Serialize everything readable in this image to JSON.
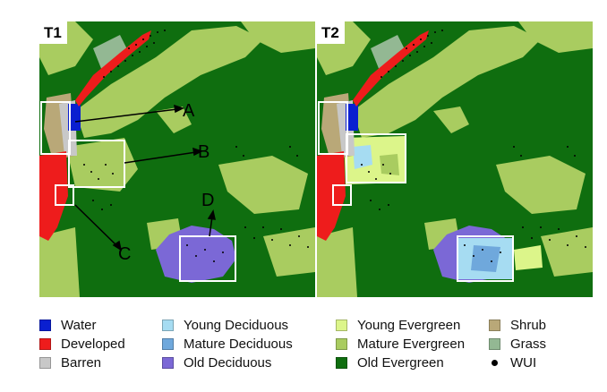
{
  "panels": [
    {
      "label": "T1"
    },
    {
      "label": "T2"
    }
  ],
  "callouts": [
    "A",
    "B",
    "C",
    "D"
  ],
  "legend": [
    {
      "label": "Water",
      "color": "#0a1fd0"
    },
    {
      "label": "Developed",
      "color": "#ee1c1c"
    },
    {
      "label": "Barren",
      "color": "#c8c8c8"
    },
    {
      "label": "Young Deciduous",
      "color": "#a6dcf2"
    },
    {
      "label": "Mature Deciduous",
      "color": "#6fa8dc"
    },
    {
      "label": "Old Deciduous",
      "color": "#7b68d6"
    },
    {
      "label": "Young Evergreen",
      "color": "#dcf58a"
    },
    {
      "label": "Mature Evergreen",
      "color": "#a9cc60"
    },
    {
      "label": "Old Evergreen",
      "color": "#0f6e0f"
    },
    {
      "label": "Shrub",
      "color": "#b9a878"
    },
    {
      "label": "Grass",
      "color": "#93b893"
    },
    {
      "label": "WUI",
      "color": "#000000"
    }
  ]
}
